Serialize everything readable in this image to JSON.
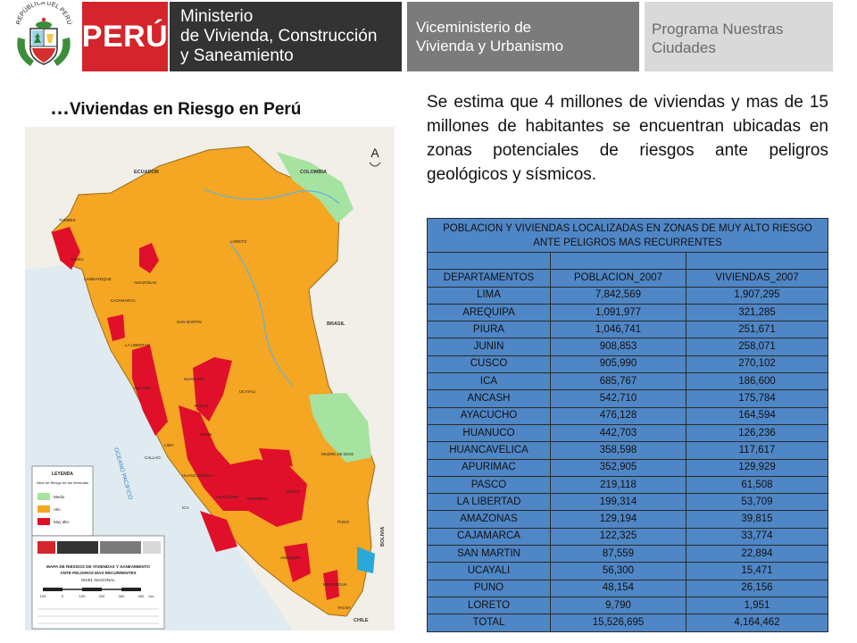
{
  "header": {
    "crest_text": "REPÚBLICA DEL PERÚ",
    "peru_label": "PERÚ",
    "ministry_lines": [
      "Ministerio",
      "de Vivienda, Construcción",
      "y Saneamiento"
    ],
    "vice_lines": [
      "Viceministerio de",
      "Vivienda y Urbanismo"
    ],
    "program_lines": [
      "Programa Nuestras",
      "Ciudades"
    ]
  },
  "slide": {
    "subtitle_dots": "…",
    "subtitle": "Viviendas en Riesgo en Perú",
    "intro": "Se estima que 4 millones de viviendas y mas de 15 millones de habitantes se encuentran ubicadas en zonas potenciales de riesgos ante peligros geológicos y sísmicos."
  },
  "map": {
    "north_symbol": "A",
    "countries": [
      "ECUADOR",
      "COLOMBIA",
      "BRASIL",
      "BOLIVIA",
      "CHILE"
    ],
    "ocean": "OCEANO PACIFICO",
    "regions": [
      "LORETO",
      "TUMBES",
      "PIURA",
      "LAMBAYEQUE",
      "CAJAMARCA",
      "AMAZONAS",
      "SAN MARTIN",
      "LA LIBERTAD",
      "ANCASH",
      "HUANUCO",
      "UCAYALI",
      "PASCO",
      "JUNIN",
      "LIMA",
      "CALLAO",
      "HUANCAVELICA",
      "ICA",
      "AYACUCHO",
      "APURIMAC",
      "CUSCO",
      "MADRE DE DIOS",
      "PUNO",
      "AREQUIPA",
      "MOQUEGUA",
      "TACNA"
    ],
    "legend_title": "LEYENDA",
    "legend_subtitle": "Nivel de Riesgo de las Viviendas",
    "legend_items": [
      {
        "label": "Medio",
        "color": "#a6e3a0"
      },
      {
        "label": "Alto",
        "color": "#f5a623"
      },
      {
        "label": "Muy alto",
        "color": "#e0102a"
      }
    ],
    "map_title_line1": "MAPA DE RIESGOS DE VIVIENDAS Y SANEAMIENTO",
    "map_title_line2": "ANTE PELIGROS MAS RECURRENTES",
    "level": "NIVEL NACIONAL",
    "scale_labels": [
      "100",
      "0",
      "100",
      "200",
      "300",
      "400",
      "Km."
    ]
  },
  "table": {
    "title": "POBLACION Y VIVIENDAS LOCALIZADAS EN ZONAS DE MUY ALTO RIESGO ANTE PELIGROS MAS RECURRENTES",
    "headers": [
      "DEPARTAMENTOS",
      "POBLACION_2007",
      "VIVIENDAS_2007"
    ],
    "rows": [
      [
        "LIMA",
        "7,842,569",
        "1,907,295"
      ],
      [
        "AREQUIPA",
        "1,091,977",
        "321,285"
      ],
      [
        "PIURA",
        "1,046,741",
        "251,671"
      ],
      [
        "JUNIN",
        "908,853",
        "258,071"
      ],
      [
        "CUSCO",
        "905,990",
        "270,102"
      ],
      [
        "ICA",
        "685,767",
        "186,600"
      ],
      [
        "ANCASH",
        "542,710",
        "175,784"
      ],
      [
        "AYACUCHO",
        "476,128",
        "164,594"
      ],
      [
        "HUANUCO",
        "442,703",
        "126,236"
      ],
      [
        "HUANCAVELICA",
        "358,598",
        "117,617"
      ],
      [
        "APURIMAC",
        "352,905",
        "129,929"
      ],
      [
        "PASCO",
        "219,118",
        "61,508"
      ],
      [
        "LA LIBERTAD",
        "199,314",
        "53,709"
      ],
      [
        "AMAZONAS",
        "129,194",
        "39,815"
      ],
      [
        "CAJAMARCA",
        "122,325",
        "33,774"
      ],
      [
        "SAN MARTIN",
        "87,559",
        "22,894"
      ],
      [
        "UCAYALI",
        "56,300",
        "15,471"
      ],
      [
        "PUNO",
        "48,154",
        "26,156"
      ],
      [
        "LORETO",
        "9,790",
        "1,951"
      ],
      [
        "TOTAL",
        "15,526,695",
        "4,164,462"
      ]
    ]
  },
  "colors": {
    "peru_red": "#d3252b",
    "ministry_dark": "#333333",
    "vice_grey": "#7b7b7b",
    "program_light": "#d9d9d9",
    "table_blue": "#4f86c6",
    "risk_medium": "#a6e3a0",
    "risk_high": "#f5a623",
    "risk_very_high": "#e0102a"
  }
}
